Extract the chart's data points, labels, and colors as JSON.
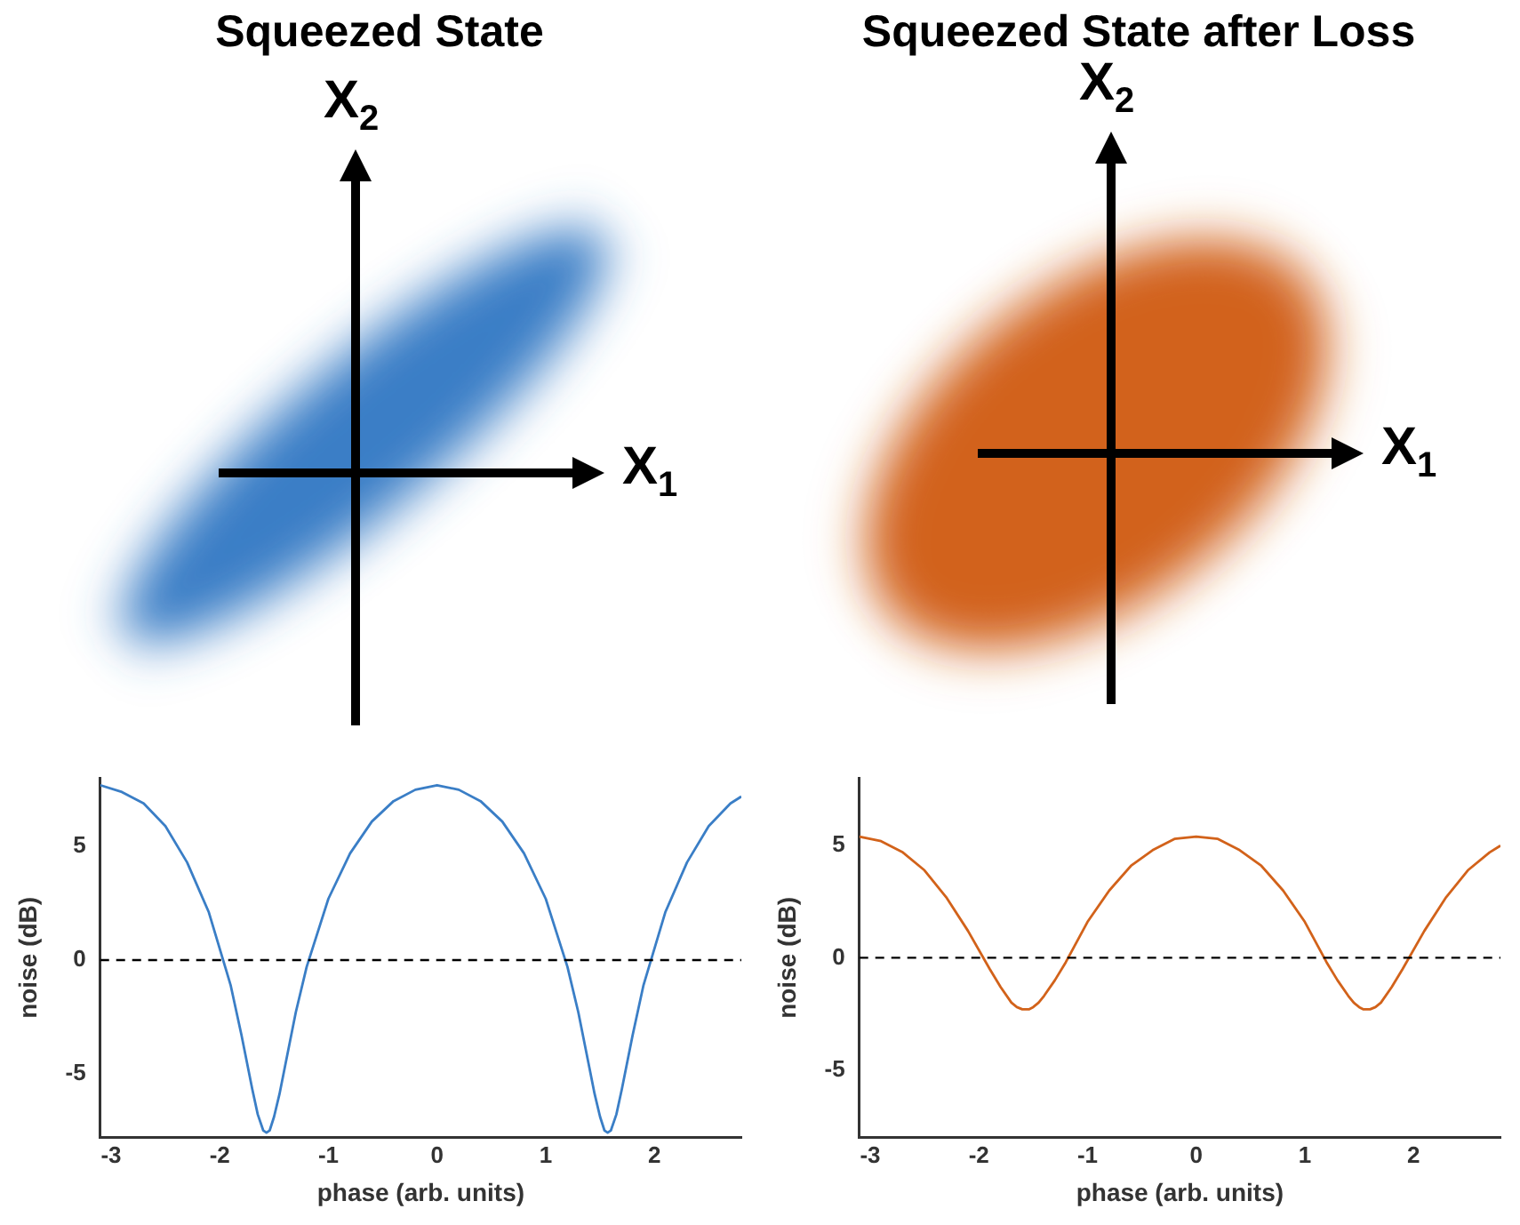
{
  "chart_data": [
    {
      "type": "line",
      "title": "Squeezed State",
      "xlabel": "phase (arb. units)",
      "ylabel": "noise (dB)",
      "annotations": [
        "X$_{1}$",
        "X$_{2}$"
      ],
      "x": [
        -3.1,
        -2.9,
        -2.7,
        -2.5,
        -2.3,
        -2.1,
        -1.9,
        -1.8,
        -1.7,
        -1.65,
        -1.6,
        -1.57,
        -1.54,
        -1.5,
        -1.45,
        -1.4,
        -1.3,
        -1.2,
        -1.0,
        -0.8,
        -0.6,
        -0.4,
        -0.2,
        0,
        0.2,
        0.4,
        0.6,
        0.8,
        1.0,
        1.2,
        1.3,
        1.4,
        1.45,
        1.5,
        1.54,
        1.57,
        1.6,
        1.65,
        1.7,
        1.8,
        1.9,
        2.1,
        2.3,
        2.5,
        2.7,
        2.8
      ],
      "series": [
        {
          "color": "#3a7ec6",
          "values": [
            7.7,
            7.4,
            6.9,
            5.9,
            4.3,
            2.1,
            -1.1,
            -3.3,
            -5.7,
            -6.8,
            -7.5,
            -7.6,
            -7.5,
            -6.9,
            -5.9,
            -4.7,
            -2.3,
            -0.3,
            2.7,
            4.7,
            6.1,
            7.0,
            7.5,
            7.7,
            7.5,
            7.0,
            6.1,
            4.7,
            2.7,
            -0.3,
            -2.3,
            -4.7,
            -5.9,
            -6.9,
            -7.5,
            -7.6,
            -7.5,
            -6.8,
            -5.7,
            -3.3,
            -1.1,
            2.1,
            4.3,
            5.9,
            6.9,
            7.2
          ]
        }
      ],
      "xlim": [
        -3.1,
        2.8
      ],
      "xticks": [
        -3,
        -2,
        -1,
        0,
        1,
        2
      ],
      "ylim": [
        -7.8,
        8
      ],
      "yticks": [
        -5,
        0,
        5
      ],
      "ref_lines": [
        {
          "axis": "y",
          "value": 0,
          "color": "#000000",
          "line_style": "dashed"
        }
      ],
      "grid": false,
      "legend": false,
      "marker": "none",
      "line_style": "solid"
    },
    {
      "type": "line",
      "title": "Squeezed State after Loss",
      "xlabel": "phase (arb. units)",
      "ylabel": "noise (dB)",
      "annotations": [
        "X$_{1}$",
        "X$_{2}$"
      ],
      "x": [
        -3.1,
        -2.9,
        -2.7,
        -2.5,
        -2.3,
        -2.1,
        -1.9,
        -1.8,
        -1.7,
        -1.65,
        -1.6,
        -1.57,
        -1.54,
        -1.5,
        -1.45,
        -1.4,
        -1.3,
        -1.2,
        -1.0,
        -0.8,
        -0.6,
        -0.4,
        -0.2,
        0,
        0.2,
        0.4,
        0.6,
        0.8,
        1.0,
        1.2,
        1.3,
        1.4,
        1.45,
        1.5,
        1.54,
        1.57,
        1.6,
        1.65,
        1.7,
        1.8,
        1.9,
        2.1,
        2.3,
        2.5,
        2.7,
        2.8
      ],
      "series": [
        {
          "color": "#d2621a",
          "values": [
            5.4,
            5.2,
            4.7,
            3.9,
            2.7,
            1.2,
            -0.5,
            -1.3,
            -2.0,
            -2.2,
            -2.3,
            -2.3,
            -2.3,
            -2.2,
            -2.0,
            -1.7,
            -1.0,
            -0.2,
            1.6,
            3.0,
            4.1,
            4.8,
            5.3,
            5.4,
            5.3,
            4.8,
            4.1,
            3.0,
            1.6,
            -0.2,
            -1.0,
            -1.7,
            -2.0,
            -2.2,
            -2.3,
            -2.3,
            -2.3,
            -2.2,
            -2.0,
            -1.3,
            -0.5,
            1.2,
            2.7,
            3.9,
            4.7,
            5.0
          ]
        }
      ],
      "xlim": [
        -3.1,
        2.8
      ],
      "xticks": [
        -3,
        -2,
        -1,
        0,
        1,
        2
      ],
      "ylim": [
        -8,
        8
      ],
      "yticks": [
        -5,
        0,
        5
      ],
      "ref_lines": [
        {
          "axis": "y",
          "value": 0,
          "color": "#000000",
          "line_style": "dashed"
        }
      ],
      "grid": false,
      "legend": false,
      "marker": "none",
      "line_style": "solid"
    }
  ]
}
